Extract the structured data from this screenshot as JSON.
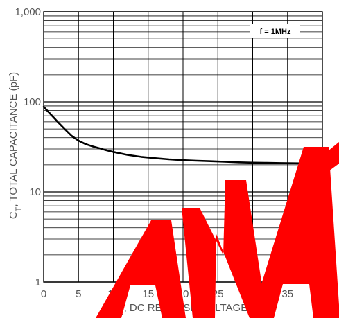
{
  "chart_data": {
    "type": "line",
    "title": "",
    "xlabel": {
      "pre": "V",
      "sub": "R",
      "post": ", DC REVERSE VOLTAGE (V)"
    },
    "ylabel": {
      "pre": "C",
      "sub": "T",
      "post": ", TOTAL CAPACITANCE (pF)"
    },
    "xlim": [
      0,
      40
    ],
    "ylim": [
      1,
      1000
    ],
    "yscale": "log",
    "grid": true,
    "x_ticks": [
      0,
      5,
      10,
      15,
      20,
      25,
      30,
      35,
      40
    ],
    "x_tick_labels": [
      "0",
      "5",
      "10",
      "15",
      "20",
      "25",
      "30",
      "35",
      "40"
    ],
    "y_ticks": [
      1,
      10,
      100,
      1000
    ],
    "y_tick_labels": [
      "1",
      "10",
      "100",
      "1,000"
    ],
    "annotation": "f = 1MHz",
    "series": [
      {
        "values": [
          [
            0,
            88
          ],
          [
            1,
            73
          ],
          [
            2,
            60
          ],
          [
            3,
            50
          ],
          [
            4,
            42
          ],
          [
            5,
            37
          ],
          [
            6,
            34
          ],
          [
            7,
            32
          ],
          [
            8,
            30.5
          ],
          [
            9,
            29
          ],
          [
            10,
            27.8
          ],
          [
            12,
            25.8
          ],
          [
            14,
            24.5
          ],
          [
            16,
            23.7
          ],
          [
            18,
            23.0
          ],
          [
            20,
            22.5
          ],
          [
            22,
            22.2
          ],
          [
            24,
            21.9
          ],
          [
            26,
            21.6
          ],
          [
            28,
            21.3
          ],
          [
            30,
            21.1
          ],
          [
            32,
            21.0
          ],
          [
            34,
            20.9
          ],
          [
            36,
            20.8
          ],
          [
            38,
            20.7
          ],
          [
            40,
            20.6
          ]
        ]
      }
    ]
  },
  "colors": {
    "line": "#000000",
    "grid": "#000000",
    "text": "#555555",
    "watermark": "#ff0000"
  }
}
